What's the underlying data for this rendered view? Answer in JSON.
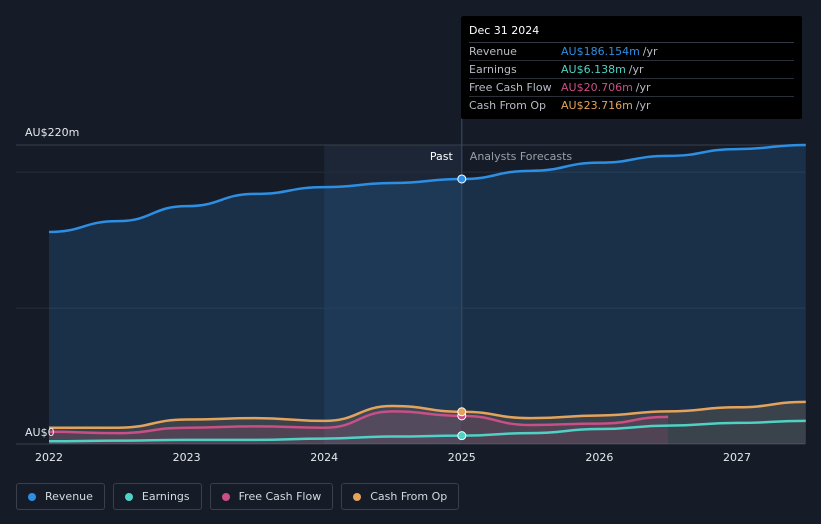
{
  "chart_data": {
    "type": "line",
    "ylabel_top": "AU$220m",
    "ylabel_bottom": "AU$0",
    "ylim": [
      0,
      220
    ],
    "x_ticks": [
      "2022",
      "2023",
      "2024",
      "2025",
      "2026",
      "2027"
    ],
    "past_label": "Past",
    "forecast_label": "Analysts Forecasts",
    "divider_x": 2025.0,
    "series": [
      {
        "name": "Revenue",
        "color": "#2d8fe3",
        "fill": true,
        "points": [
          [
            2022.0,
            156
          ],
          [
            2022.5,
            164
          ],
          [
            2023.0,
            175
          ],
          [
            2023.5,
            184
          ],
          [
            2024.0,
            189
          ],
          [
            2024.5,
            192
          ],
          [
            2025.0,
            186.154
          ],
          [
            2025.5,
            192
          ],
          [
            2026.0,
            199
          ],
          [
            2026.5,
            205
          ],
          [
            2027.0,
            210
          ],
          [
            2027.5,
            215
          ]
        ],
        "points_fix": [
          [
            2022.0,
            156
          ],
          [
            2022.5,
            164
          ],
          [
            2023.0,
            175
          ],
          [
            2023.5,
            184
          ],
          [
            2024.0,
            189
          ],
          [
            2024.5,
            192
          ],
          [
            2025.0,
            195
          ],
          [
            2025.5,
            201
          ],
          [
            2026.0,
            207
          ],
          [
            2026.5,
            212
          ],
          [
            2027.0,
            217
          ],
          [
            2027.5,
            220
          ]
        ]
      },
      {
        "name": "Earnings",
        "color": "#4fd1c5",
        "fill": false,
        "points": [
          [
            2022.0,
            2
          ],
          [
            2022.5,
            2.5
          ],
          [
            2023.0,
            3
          ],
          [
            2023.5,
            3
          ],
          [
            2024.0,
            4
          ],
          [
            2024.5,
            5.5
          ],
          [
            2025.0,
            6.138
          ],
          [
            2025.5,
            8
          ],
          [
            2026.0,
            11
          ],
          [
            2026.5,
            13.5
          ],
          [
            2027.0,
            15.5
          ],
          [
            2027.5,
            17
          ]
        ]
      },
      {
        "name": "Free Cash Flow",
        "color": "#c94f86",
        "fill": true,
        "points": [
          [
            2022.0,
            9
          ],
          [
            2022.5,
            8
          ],
          [
            2023.0,
            12
          ],
          [
            2023.5,
            13
          ],
          [
            2024.0,
            12
          ],
          [
            2024.5,
            24
          ],
          [
            2025.0,
            20.706
          ],
          [
            2025.5,
            14
          ],
          [
            2026.0,
            15
          ],
          [
            2026.5,
            20
          ]
        ]
      },
      {
        "name": "Cash From Op",
        "color": "#e4a35c",
        "fill": true,
        "points": [
          [
            2022.0,
            12
          ],
          [
            2022.5,
            12
          ],
          [
            2023.0,
            18
          ],
          [
            2023.5,
            19
          ],
          [
            2024.0,
            17
          ],
          [
            2024.5,
            28
          ],
          [
            2025.0,
            23.716
          ],
          [
            2025.5,
            19
          ],
          [
            2026.0,
            21
          ],
          [
            2026.5,
            24
          ],
          [
            2027.0,
            27
          ],
          [
            2027.5,
            31
          ]
        ]
      }
    ]
  },
  "tooltip": {
    "date": "Dec 31 2024",
    "rows": [
      {
        "label": "Revenue",
        "value": "AU$186.154m",
        "unit": "/yr",
        "color": "#2d8fe3"
      },
      {
        "label": "Earnings",
        "value": "AU$6.138m",
        "unit": "/yr",
        "color": "#4fd1c5"
      },
      {
        "label": "Free Cash Flow",
        "value": "AU$20.706m",
        "unit": "/yr",
        "color": "#c94f86"
      },
      {
        "label": "Cash From Op",
        "value": "AU$23.716m",
        "unit": "/yr",
        "color": "#e4a35c"
      }
    ]
  },
  "legend": [
    {
      "label": "Revenue",
      "color": "#2d8fe3"
    },
    {
      "label": "Earnings",
      "color": "#4fd1c5"
    },
    {
      "label": "Free Cash Flow",
      "color": "#c94f86"
    },
    {
      "label": "Cash From Op",
      "color": "#e4a35c"
    }
  ]
}
